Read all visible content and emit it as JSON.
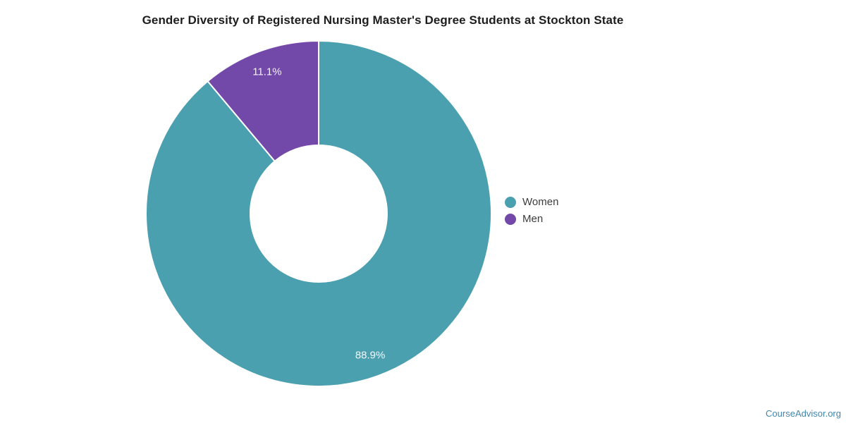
{
  "title": "Gender Diversity of Registered Nursing Master's Degree Students at Stockton State",
  "attribution": "CourseAdvisor.org",
  "colors": {
    "women_teal": "#4AA0AF",
    "men_purple": "#7248A8",
    "title_text": "#1D1D1D",
    "legend_text": "#3C3C3C",
    "slice_label_text": "#F2F2F2",
    "separator": "#FFFFFF",
    "attribution_link": "#4186AE",
    "background": "#FFFFFF"
  },
  "chart_data": {
    "type": "pie",
    "subtype": "donut",
    "title": "Gender Diversity of Registered Nursing Master's Degree Students at Stockton State",
    "labels": [
      "Women",
      "Men"
    ],
    "values": [
      88.9,
      11.1
    ],
    "display_labels": [
      "88.9%",
      "11.1%"
    ],
    "colors": [
      "#4AA0AF",
      "#7248A8"
    ],
    "start_angle_deg": 0,
    "direction": "clockwise",
    "hole_ratio": 0.4,
    "legend_position": "right-center",
    "labels_inside_slices": true
  }
}
